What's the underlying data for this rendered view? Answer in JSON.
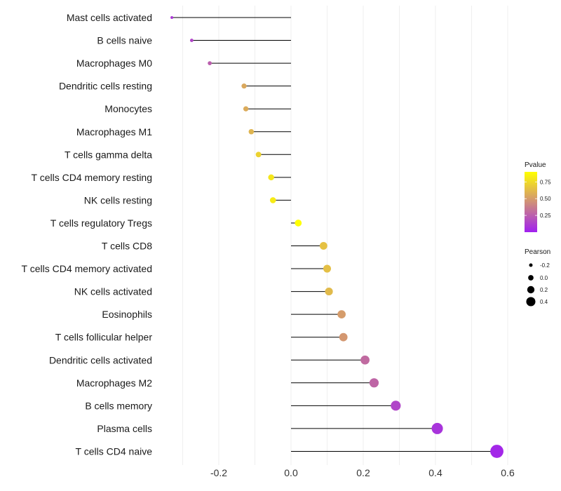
{
  "chart_data": {
    "type": "lollipop",
    "categories": [
      "Mast cells activated",
      "B cells naive",
      "Macrophages M0",
      "Dendritic cells resting",
      "Monocytes",
      "Macrophages M1",
      "T cells gamma delta",
      "T cells CD4 memory resting",
      "NK cells resting",
      "T cells regulatory  Tregs",
      "T cells CD8",
      "T cells CD4 memory activated",
      "NK cells activated",
      "Eosinophils",
      "T cells follicular helper",
      "Dendritic cells activated",
      "Macrophages M2",
      "B cells memory",
      "Plasma cells",
      "T cells CD4 naive"
    ],
    "pearson": [
      -0.33,
      -0.275,
      -0.225,
      -0.13,
      -0.125,
      -0.11,
      -0.09,
      -0.055,
      -0.05,
      0.02,
      0.09,
      0.1,
      0.105,
      0.14,
      0.145,
      0.205,
      0.23,
      0.29,
      0.405,
      0.57
    ],
    "pvalue": [
      0.1,
      0.15,
      0.25,
      0.55,
      0.56,
      0.6,
      0.72,
      0.8,
      0.82,
      0.95,
      0.65,
      0.64,
      0.62,
      0.5,
      0.48,
      0.3,
      0.28,
      0.15,
      0.08,
      0.03
    ],
    "xlim": [
      -0.3,
      0.6
    ],
    "xticks": [
      -0.2,
      0.0,
      0.2,
      0.4,
      0.6
    ],
    "xtick_labels": [
      "-0.2",
      "0.0",
      "0.2",
      "0.4",
      "0.6"
    ],
    "color_legend": {
      "title": "Pvalue",
      "ticks": [
        0.25,
        0.5,
        0.75
      ],
      "tick_labels": [
        "0.25",
        "0.50",
        "0.75"
      ],
      "range": [
        0.0,
        0.9
      ],
      "low_color": "#a020f0",
      "high_color": "#ffff00"
    },
    "size_legend": {
      "title": "Pearson",
      "values": [
        -0.2,
        0.0,
        0.2,
        0.4
      ],
      "labels": [
        "-0.2",
        "0.0",
        "0.2",
        "0.4"
      ],
      "color": "#000000"
    },
    "segment_color": "#000000",
    "grid": true,
    "grid_color": "#ebebeb"
  }
}
